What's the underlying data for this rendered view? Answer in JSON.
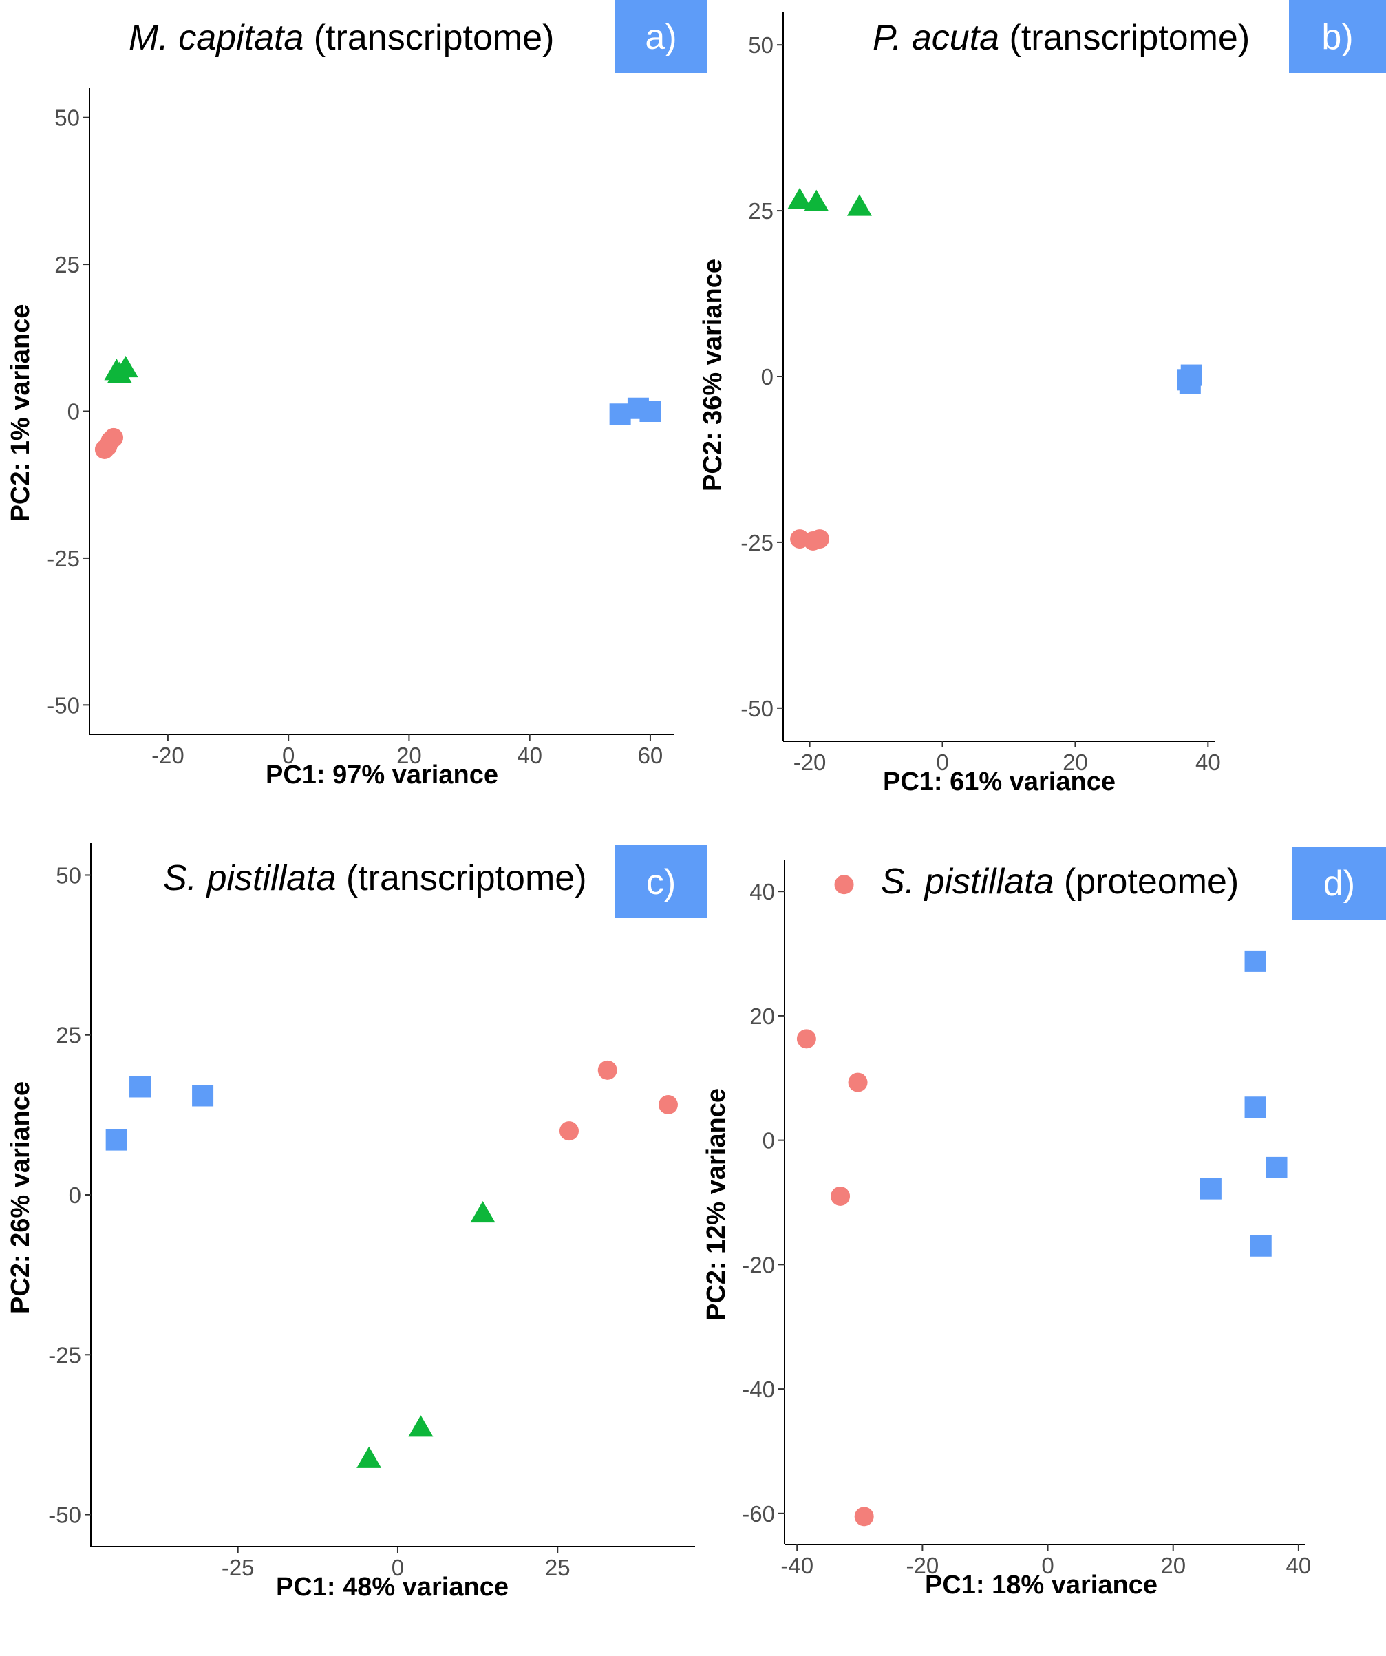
{
  "colors": {
    "red": "#F37F7A",
    "green": "#0DB63A",
    "blue": "#5E9CF8",
    "badge": "#5E9CF8"
  },
  "chart_data": [
    {
      "type": "scatter",
      "panel": "a)",
      "title_species": "M. capitata",
      "title_rest": " (transcriptome)",
      "xlabel": "PC1: 97% variance",
      "ylabel": "PC2: 1% variance",
      "xlim": [
        -33,
        64
      ],
      "ylim": [
        -55,
        55
      ],
      "xticks": [
        -20,
        0,
        20,
        40,
        60
      ],
      "yticks": [
        -50,
        -25,
        0,
        25,
        50
      ],
      "grid": false,
      "series": [
        {
          "color": "red",
          "shape": "circle",
          "points": [
            [
              -30.5,
              -6.5
            ],
            [
              -30,
              -6
            ],
            [
              -29.5,
              -5
            ],
            [
              -29,
              -4.5
            ]
          ]
        },
        {
          "color": "green",
          "shape": "triangle",
          "points": [
            [
              -28.5,
              6.5
            ],
            [
              -28,
              6
            ],
            [
              -27,
              7
            ]
          ]
        },
        {
          "color": "blue",
          "shape": "square",
          "points": [
            [
              55,
              -0.5
            ],
            [
              58,
              0.5
            ],
            [
              60,
              0
            ]
          ]
        }
      ]
    },
    {
      "type": "scatter",
      "panel": "b)",
      "title_species": "P. acuta",
      "title_rest": " (transcriptome)",
      "xlabel": "PC1: 61% variance",
      "ylabel": "PC2: 36% variance",
      "xlim": [
        -24,
        41
      ],
      "ylim": [
        -55,
        55
      ],
      "xticks": [
        -20,
        0,
        20,
        40
      ],
      "yticks": [
        -50,
        -25,
        0,
        25,
        50
      ],
      "grid": false,
      "series": [
        {
          "color": "red",
          "shape": "circle",
          "points": [
            [
              -21.5,
              -24.5
            ],
            [
              -19.5,
              -24.8
            ],
            [
              -18.5,
              -24.5
            ]
          ]
        },
        {
          "color": "green",
          "shape": "triangle",
          "points": [
            [
              -21.5,
              26.3
            ],
            [
              -19,
              26
            ],
            [
              -12.5,
              25.3
            ]
          ]
        },
        {
          "color": "blue",
          "shape": "square",
          "points": [
            [
              37,
              -0.5
            ],
            [
              37.5,
              0.2
            ],
            [
              37.3,
              -1
            ]
          ]
        }
      ]
    },
    {
      "type": "scatter",
      "panel": "c)",
      "title_species": "S. pistillata",
      "title_rest": " (transcriptome)",
      "xlabel": "PC1: 48% variance",
      "ylabel": "PC2: 26% variance",
      "xlim": [
        -48,
        46.5
      ],
      "ylim": [
        -55,
        55
      ],
      "xticks": [
        -25,
        0,
        25
      ],
      "yticks": [
        -50,
        -25,
        0,
        25,
        50
      ],
      "grid": false,
      "series": [
        {
          "color": "red",
          "shape": "circle",
          "points": [
            [
              26.8,
              10
            ],
            [
              32.8,
              19.5
            ],
            [
              42.3,
              14.1
            ]
          ]
        },
        {
          "color": "green",
          "shape": "triangle",
          "points": [
            [
              13.3,
              -3.2
            ],
            [
              3.6,
              -36.7
            ],
            [
              -4.5,
              -41.6
            ]
          ]
        },
        {
          "color": "blue",
          "shape": "square",
          "points": [
            [
              -44,
              8.6
            ],
            [
              -40.3,
              16.9
            ],
            [
              -30.5,
              15.5
            ]
          ]
        }
      ]
    },
    {
      "type": "scatter",
      "panel": "d)",
      "title_species": "S. pistillata",
      "title_rest": " (proteome)",
      "xlabel": "PC1: 18% variance",
      "ylabel": "PC2: 12% variance",
      "xlim": [
        -42,
        41
      ],
      "ylim": [
        -65,
        45
      ],
      "xticks": [
        -40,
        -20,
        0,
        20,
        40
      ],
      "yticks": [
        -60,
        -40,
        -20,
        0,
        20,
        40
      ],
      "grid": false,
      "series": [
        {
          "color": "red",
          "shape": "circle",
          "points": [
            [
              -32.5,
              41.1
            ],
            [
              -38.5,
              16.3
            ],
            [
              -30.3,
              9.3
            ],
            [
              -33.1,
              -9
            ],
            [
              -29.3,
              -60.5
            ]
          ]
        },
        {
          "color": "blue",
          "shape": "square",
          "points": [
            [
              33.1,
              28.8
            ],
            [
              33.1,
              5.3
            ],
            [
              36.5,
              -4.4
            ],
            [
              26,
              -7.8
            ],
            [
              34,
              -17
            ]
          ]
        }
      ]
    }
  ]
}
